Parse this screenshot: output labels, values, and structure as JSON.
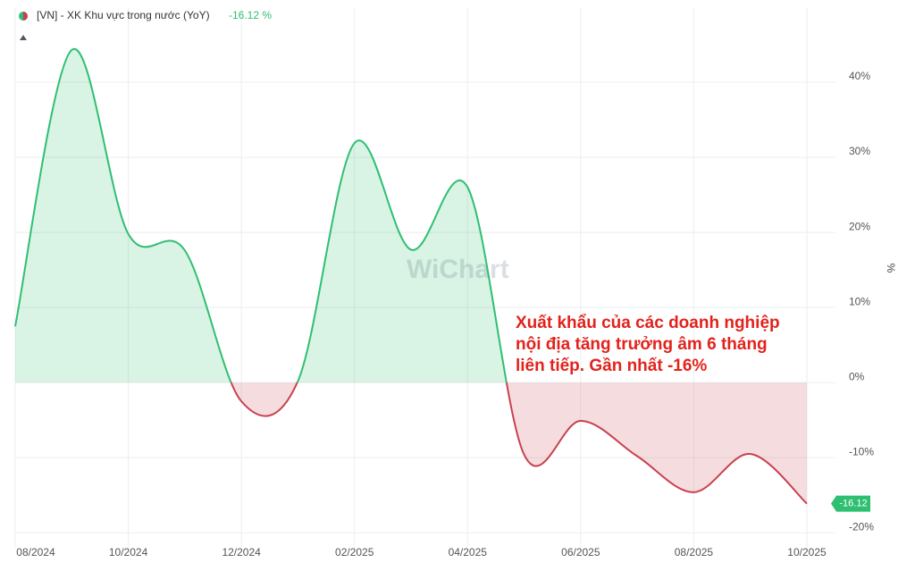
{
  "chart_data": {
    "type": "line",
    "legend_label": "[VN] - XK Khu vực trong nước (YoY)",
    "header_value": "-16.12 %",
    "y_axis_label": "%",
    "watermark": "WiChart",
    "annotation": [
      "Xuất khẩu của các doanh nghiệp",
      "nội địa tăng trưởng âm 6 tháng",
      "liên tiếp. Gần nhất -16%"
    ],
    "categories": [
      "08/2024",
      null,
      "10/2024",
      null,
      "12/2024",
      null,
      "02/2025",
      null,
      "04/2025",
      null,
      "06/2025",
      null,
      "08/2025",
      null,
      "10/2025"
    ],
    "series": [
      {
        "name": "[VN] - XK Khu vực trong nước (YoY)",
        "color": "#2fbf71",
        "negative_color": "#c8414f",
        "values": [
          7.5,
          44.3,
          19.8,
          17.6,
          -2.5,
          0.2,
          31.9,
          17.7,
          26,
          -9.6,
          -5.1,
          -9.8,
          -14.6,
          -9.5,
          -16.12
        ]
      }
    ],
    "ylim": [
      -22,
      50
    ],
    "yticks": [
      {
        "value": -20,
        "label": "-20%"
      },
      {
        "value": -10,
        "label": "-10%"
      },
      {
        "value": 0,
        "label": "0%"
      },
      {
        "value": 10,
        "label": "10%"
      },
      {
        "value": 20,
        "label": "20%"
      },
      {
        "value": 30,
        "label": "30%"
      },
      {
        "value": 40,
        "label": "40%"
      }
    ],
    "grid": true
  }
}
